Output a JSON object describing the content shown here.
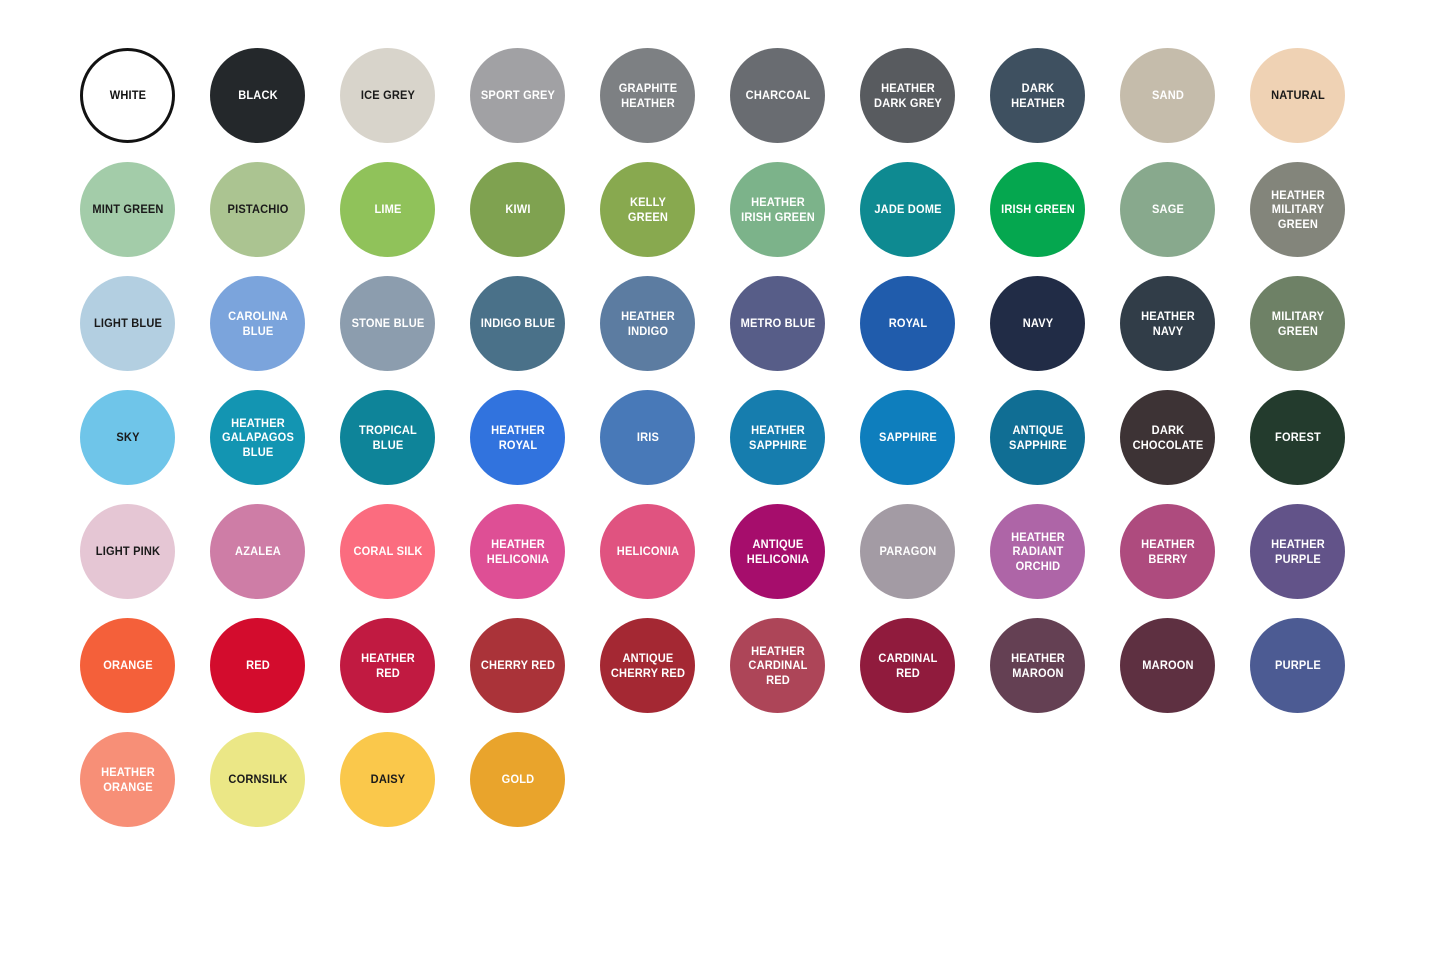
{
  "chart_data": {
    "type": "table",
    "title": "Apparel color swatch chart",
    "columns": [
      "color_name",
      "hex"
    ],
    "rows": [
      [
        "WHITE",
        "#ffffff"
      ],
      [
        "BLACK",
        "#24282b"
      ],
      [
        "ICE GREY",
        "#d8d4cb"
      ],
      [
        "SPORT GREY",
        "#a1a1a4"
      ],
      [
        "GRAPHITE HEATHER",
        "#7d8083"
      ],
      [
        "CHARCOAL",
        "#696c71"
      ],
      [
        "HEATHER DARK GREY",
        "#585b5f"
      ],
      [
        "DARK HEATHER",
        "#3e5060"
      ],
      [
        "SAND",
        "#c5bcab"
      ],
      [
        "NATURAL",
        "#efd2b4"
      ],
      [
        "MINT GREEN",
        "#a3cca9"
      ],
      [
        "PISTACHIO",
        "#abc491"
      ],
      [
        "LIME",
        "#90c25a"
      ],
      [
        "KIWI",
        "#7fa250"
      ],
      [
        "KELLY GREEN",
        "#88a94f"
      ],
      [
        "HEATHER IRISH GREEN",
        "#7cb38a"
      ],
      [
        "JADE DOME",
        "#0e8a91"
      ],
      [
        "IRISH GREEN",
        "#05a74f"
      ],
      [
        "SAGE",
        "#88a98d"
      ],
      [
        "HEATHER MILITARY GREEN",
        "#83857b"
      ],
      [
        "LIGHT BLUE",
        "#b3cfe1"
      ],
      [
        "CAROLINA BLUE",
        "#7ba4dc"
      ],
      [
        "STONE BLUE",
        "#8c9dae"
      ],
      [
        "INDIGO BLUE",
        "#4a7189"
      ],
      [
        "HEATHER INDIGO",
        "#5c7ca1"
      ],
      [
        "METRO BLUE",
        "#575d88"
      ],
      [
        "ROYAL",
        "#205cac"
      ],
      [
        "NAVY",
        "#212c46"
      ],
      [
        "HEATHER NAVY",
        "#313d48"
      ],
      [
        "MILITARY GREEN",
        "#6e8166"
      ],
      [
        "SKY",
        "#6fc5e9"
      ],
      [
        "HEATHER GALAPAGOS BLUE",
        "#1395b2"
      ],
      [
        "TROPICAL BLUE",
        "#0e8499"
      ],
      [
        "HEATHER ROYAL",
        "#3173de"
      ],
      [
        "IRIS",
        "#4879b8"
      ],
      [
        "HEATHER SAPPHIRE",
        "#167dae"
      ],
      [
        "SAPPHIRE",
        "#0e7ebd"
      ],
      [
        "ANTIQUE SAPPHIRE",
        "#106e94"
      ],
      [
        "DARK CHOCOLATE",
        "#3d3335"
      ],
      [
        "FOREST",
        "#233b2d"
      ],
      [
        "LIGHT PINK",
        "#e5c6d4"
      ],
      [
        "AZALEA",
        "#ce7da6"
      ],
      [
        "CORAL SILK",
        "#fb6c7f"
      ],
      [
        "HEATHER HELICONIA",
        "#de4f95"
      ],
      [
        "HELICONIA",
        "#e05380"
      ],
      [
        "ANTIQUE HELICONIA",
        "#a60d6c"
      ],
      [
        "PARAGON",
        "#a39ba4"
      ],
      [
        "HEATHER RADIANT ORCHID",
        "#ae65a7"
      ],
      [
        "HEATHER BERRY",
        "#ae4b7e"
      ],
      [
        "HEATHER PURPLE",
        "#625389"
      ],
      [
        "ORANGE",
        "#f4603a"
      ],
      [
        "RED",
        "#d30c2d"
      ],
      [
        "HEATHER RED",
        "#c11a41"
      ],
      [
        "CHERRY RED",
        "#aa3339"
      ],
      [
        "ANTIQUE CHERRY RED",
        "#a42833"
      ],
      [
        "HEATHER CARDINAL RED",
        "#ad4558"
      ],
      [
        "CARDINAL RED",
        "#901b3d"
      ],
      [
        "HEATHER MAROON",
        "#644053"
      ],
      [
        "MAROON",
        "#5e3041"
      ],
      [
        "PURPLE",
        "#4c5b93"
      ],
      [
        "HEATHER ORANGE",
        "#f78f77"
      ],
      [
        "CORNSILK",
        "#ebe786"
      ],
      [
        "DAISY",
        "#fac84b"
      ],
      [
        "GOLD",
        "#e9a42c"
      ]
    ]
  },
  "grid": {
    "rows": [
      [
        {
          "label": "WHITE",
          "color": "#ffffff",
          "text_color": "#111111",
          "border": "#121212"
        },
        {
          "label": "BLACK",
          "color": "#24282b",
          "text_color": "#ffffff"
        },
        {
          "label": "ICE GREY",
          "color": "#d8d4cb",
          "text_color": "#1a1a1a"
        },
        {
          "label": "SPORT GREY",
          "color": "#a1a1a4",
          "text_color": "#ffffff"
        },
        {
          "label": "GRAPHITE HEATHER",
          "color": "#7d8083",
          "text_color": "#ffffff"
        },
        {
          "label": "CHARCOAL",
          "color": "#696c71",
          "text_color": "#ffffff"
        },
        {
          "label": "HEATHER DARK GREY",
          "color": "#585b5f",
          "text_color": "#ffffff"
        },
        {
          "label": "DARK HEATHER",
          "color": "#3e5060",
          "text_color": "#ffffff"
        },
        {
          "label": "SAND",
          "color": "#c5bcab",
          "text_color": "#ffffff"
        },
        {
          "label": "NATURAL",
          "color": "#efd2b4",
          "text_color": "#1a1a1a"
        }
      ],
      [
        {
          "label": "MINT GREEN",
          "color": "#a3cca9",
          "text_color": "#1a1a1a"
        },
        {
          "label": "PISTACHIO",
          "color": "#abc491",
          "text_color": "#1a1a1a"
        },
        {
          "label": "LIME",
          "color": "#90c25a",
          "text_color": "#ffffff"
        },
        {
          "label": "KIWI",
          "color": "#7fa250",
          "text_color": "#ffffff"
        },
        {
          "label": "KELLY GREEN",
          "color": "#88a94f",
          "text_color": "#ffffff"
        },
        {
          "label": "HEATHER IRISH GREEN",
          "color": "#7cb38a",
          "text_color": "#ffffff"
        },
        {
          "label": "JADE DOME",
          "color": "#0e8a91",
          "text_color": "#ffffff"
        },
        {
          "label": "IRISH GREEN",
          "color": "#05a74f",
          "text_color": "#ffffff"
        },
        {
          "label": "SAGE",
          "color": "#88a98d",
          "text_color": "#ffffff"
        },
        {
          "label": "HEATHER MILITARY GREEN",
          "color": "#83857b",
          "text_color": "#ffffff"
        }
      ],
      [
        {
          "label": "LIGHT BLUE",
          "color": "#b3cfe1",
          "text_color": "#1a1a1a"
        },
        {
          "label": "CAROLINA BLUE",
          "color": "#7ba4dc",
          "text_color": "#ffffff"
        },
        {
          "label": "STONE BLUE",
          "color": "#8c9dae",
          "text_color": "#ffffff"
        },
        {
          "label": "INDIGO BLUE",
          "color": "#4a7189",
          "text_color": "#ffffff"
        },
        {
          "label": "HEATHER INDIGO",
          "color": "#5c7ca1",
          "text_color": "#ffffff"
        },
        {
          "label": "METRO BLUE",
          "color": "#575d88",
          "text_color": "#ffffff"
        },
        {
          "label": "ROYAL",
          "color": "#205cac",
          "text_color": "#ffffff"
        },
        {
          "label": "NAVY",
          "color": "#212c46",
          "text_color": "#ffffff"
        },
        {
          "label": "HEATHER NAVY",
          "color": "#313d48",
          "text_color": "#ffffff"
        },
        {
          "label": "MILITARY GREEN",
          "color": "#6e8166",
          "text_color": "#ffffff"
        }
      ],
      [
        {
          "label": "SKY",
          "color": "#6fc5e9",
          "text_color": "#1a1a1a"
        },
        {
          "label": "HEATHER GALAPAGOS BLUE",
          "color": "#1395b2",
          "text_color": "#ffffff"
        },
        {
          "label": "TROPICAL BLUE",
          "color": "#0e8499",
          "text_color": "#ffffff"
        },
        {
          "label": "HEATHER ROYAL",
          "color": "#3173de",
          "text_color": "#ffffff"
        },
        {
          "label": "IRIS",
          "color": "#4879b8",
          "text_color": "#ffffff"
        },
        {
          "label": "HEATHER SAPPHIRE",
          "color": "#167dae",
          "text_color": "#ffffff"
        },
        {
          "label": "SAPPHIRE",
          "color": "#0e7ebd",
          "text_color": "#ffffff"
        },
        {
          "label": "ANTIQUE SAPPHIRE",
          "color": "#106e94",
          "text_color": "#ffffff"
        },
        {
          "label": "DARK CHOCOLATE",
          "color": "#3d3335",
          "text_color": "#ffffff"
        },
        {
          "label": "FOREST",
          "color": "#233b2d",
          "text_color": "#ffffff"
        }
      ],
      [
        {
          "label": "LIGHT PINK",
          "color": "#e5c6d4",
          "text_color": "#1a1a1a"
        },
        {
          "label": "AZALEA",
          "color": "#ce7da6",
          "text_color": "#ffffff"
        },
        {
          "label": "CORAL SILK",
          "color": "#fb6c7f",
          "text_color": "#ffffff"
        },
        {
          "label": "HEATHER HELICONIA",
          "color": "#de4f95",
          "text_color": "#ffffff"
        },
        {
          "label": "HELICONIA",
          "color": "#e05380",
          "text_color": "#ffffff"
        },
        {
          "label": "ANTIQUE HELICONIA",
          "color": "#a60d6c",
          "text_color": "#ffffff"
        },
        {
          "label": "PARAGON",
          "color": "#a39ba4",
          "text_color": "#ffffff"
        },
        {
          "label": "HEATHER RADIANT ORCHID",
          "color": "#ae65a7",
          "text_color": "#ffffff"
        },
        {
          "label": "HEATHER BERRY",
          "color": "#ae4b7e",
          "text_color": "#ffffff"
        },
        {
          "label": "HEATHER PURPLE",
          "color": "#625389",
          "text_color": "#ffffff"
        }
      ],
      [
        {
          "label": "ORANGE",
          "color": "#f4603a",
          "text_color": "#ffffff"
        },
        {
          "label": "RED",
          "color": "#d30c2d",
          "text_color": "#ffffff"
        },
        {
          "label": "HEATHER RED",
          "color": "#c11a41",
          "text_color": "#ffffff"
        },
        {
          "label": "CHERRY RED",
          "color": "#aa3339",
          "text_color": "#ffffff"
        },
        {
          "label": "ANTIQUE CHERRY RED",
          "color": "#a42833",
          "text_color": "#ffffff"
        },
        {
          "label": "HEATHER CARDINAL RED",
          "color": "#ad4558",
          "text_color": "#ffffff"
        },
        {
          "label": "CARDINAL RED",
          "color": "#901b3d",
          "text_color": "#ffffff"
        },
        {
          "label": "HEATHER MAROON",
          "color": "#644053",
          "text_color": "#ffffff"
        },
        {
          "label": "MAROON",
          "color": "#5e3041",
          "text_color": "#ffffff"
        },
        {
          "label": "PURPLE",
          "color": "#4c5b93",
          "text_color": "#ffffff"
        }
      ],
      [
        {
          "label": "HEATHER ORANGE",
          "color": "#f78f77",
          "text_color": "#ffffff"
        },
        {
          "label": "CORNSILK",
          "color": "#ebe786",
          "text_color": "#1a1a1a"
        },
        {
          "label": "DAISY",
          "color": "#fac84b",
          "text_color": "#1a1a1a"
        },
        {
          "label": "GOLD",
          "color": "#e9a42c",
          "text_color": "#ffffff"
        }
      ]
    ]
  }
}
